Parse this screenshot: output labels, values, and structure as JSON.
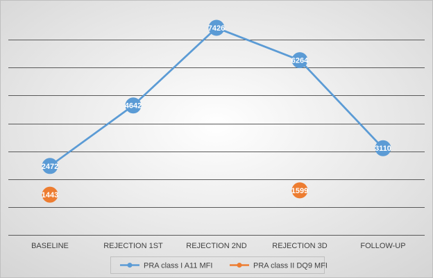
{
  "chart_data": {
    "type": "line",
    "categories": [
      "BASELINE",
      "REJECTION 1ST",
      "REJECTION 2ND",
      "REJECTION 3D",
      "FOLLOW-UP"
    ],
    "series": [
      {
        "name": "PRA class I A11 MFI",
        "color": "#5b9bd5",
        "values": [
          2472,
          4642,
          7426,
          6264,
          3110
        ],
        "labels": [
          "2472",
          "4642",
          "7426",
          "6264",
          "3110"
        ],
        "line": true
      },
      {
        "name": "PRA class II DQ9 MFI",
        "color": "#ed7d31",
        "values": [
          1443,
          null,
          null,
          1599,
          null
        ],
        "labels": [
          "1443",
          "",
          "",
          "1599",
          ""
        ],
        "line": false
      }
    ],
    "title": "",
    "xlabel": "",
    "ylabel": "",
    "ylim": [
      0,
      8000
    ],
    "ytick_step": 1000,
    "grid": true,
    "legend_position": "bottom",
    "background_color": "#e8e8e8",
    "gridline_color": "#595959"
  }
}
